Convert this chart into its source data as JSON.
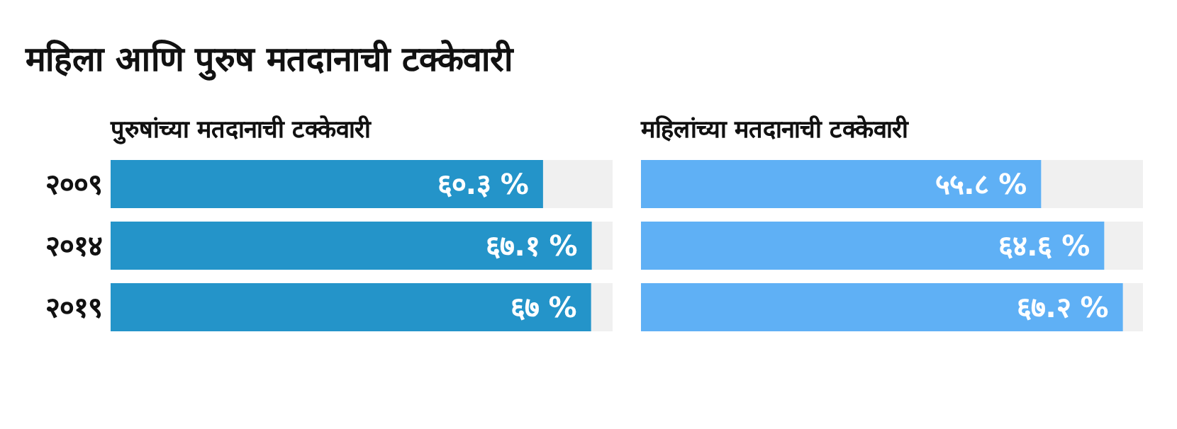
{
  "chart_data": [
    {
      "type": "bar",
      "orientation": "horizontal",
      "title": "महिला आणि पुरुष मतदानाची टक्केवारी",
      "subtitle": "पुरुषांच्या मतदानाची टक्केवारी",
      "categories": [
        "२००९",
        "२०१४",
        "२०१९"
      ],
      "values": [
        60.3,
        67.1,
        67
      ],
      "value_labels": [
        "६०.३ %",
        "६७.१ %",
        "६७ %"
      ],
      "color": "#2494c9",
      "xlim": [
        0,
        70
      ]
    },
    {
      "type": "bar",
      "orientation": "horizontal",
      "subtitle": "महिलांच्या मतदानाची टक्केवारी",
      "categories": [
        "२००९",
        "२०१४",
        "२०१९"
      ],
      "values": [
        55.8,
        64.6,
        67.2
      ],
      "value_labels": [
        "५५.८ %",
        "६४.६ %",
        "६७.२ %"
      ],
      "color": "#5fb0f5",
      "xlim": [
        0,
        70
      ],
      "tick_labels": false
    }
  ]
}
